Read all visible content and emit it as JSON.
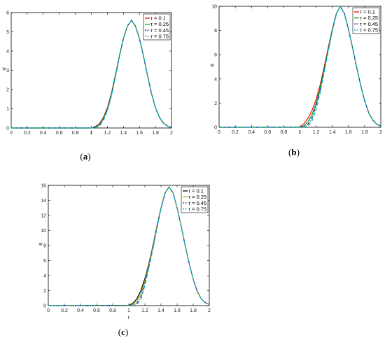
{
  "chart_data": [
    {
      "type": "line",
      "caption": "a",
      "xlabel": "r",
      "ylabel": "w",
      "xlim": [
        0,
        2
      ],
      "ylim": [
        0,
        6
      ],
      "xticks": [
        "0",
        "0.2",
        "0.4",
        "0.6",
        "0.8",
        "1",
        "1.2",
        "1.4",
        "1.6",
        "1.8",
        "2"
      ],
      "yticks": [
        "0",
        "1",
        "2",
        "3",
        "4",
        "5",
        "6"
      ],
      "legend_position": "top-right",
      "x": [
        0,
        1.0,
        1.05,
        1.1,
        1.15,
        1.2,
        1.25,
        1.3,
        1.35,
        1.4,
        1.45,
        1.5,
        1.55,
        1.6,
        1.65,
        1.7,
        1.75,
        1.8,
        1.85,
        1.9,
        1.95,
        2.0
      ],
      "series": [
        {
          "name": "τ = 0.1",
          "color": "#ff0000",
          "style": "solid",
          "values": [
            0,
            0,
            0.08,
            0.22,
            0.55,
            1.05,
            1.8,
            2.75,
            3.75,
            4.65,
            5.3,
            5.6,
            5.3,
            4.65,
            3.75,
            2.75,
            1.8,
            1.05,
            0.55,
            0.25,
            0.1,
            0.03
          ]
        },
        {
          "name": "τ = 0.25",
          "color": "#00aa00",
          "style": "solid",
          "values": [
            0,
            0,
            0.05,
            0.18,
            0.5,
            1.0,
            1.75,
            2.72,
            3.74,
            4.65,
            5.3,
            5.6,
            5.3,
            4.65,
            3.75,
            2.75,
            1.8,
            1.05,
            0.55,
            0.25,
            0.1,
            0.03
          ]
        },
        {
          "name": "τ = 0.45",
          "color": "#3333aa",
          "style": "dashdot",
          "values": [
            0,
            0,
            0.03,
            0.14,
            0.44,
            0.95,
            1.7,
            2.68,
            3.72,
            4.64,
            5.3,
            5.6,
            5.3,
            4.65,
            3.75,
            2.75,
            1.8,
            1.05,
            0.55,
            0.25,
            0.1,
            0.03
          ]
        },
        {
          "name": "τ = 0.75",
          "color": "#00b4c8",
          "style": "dashed",
          "values": [
            0,
            0,
            0.02,
            0.1,
            0.38,
            0.9,
            1.65,
            2.65,
            3.7,
            4.63,
            5.3,
            5.6,
            5.3,
            4.65,
            3.75,
            2.75,
            1.8,
            1.05,
            0.55,
            0.25,
            0.1,
            0.03
          ]
        }
      ]
    },
    {
      "type": "line",
      "caption": "b",
      "xlabel": "r",
      "ylabel": "w",
      "xlim": [
        0,
        2
      ],
      "ylim": [
        0,
        10
      ],
      "xticks": [
        "0",
        "0.2",
        "0.4",
        "0.6",
        "0.8",
        "1",
        "1.2",
        "1.4",
        "1.6",
        "1.8",
        "2"
      ],
      "yticks": [
        "0",
        "2",
        "4",
        "6",
        "8",
        "10"
      ],
      "legend_position": "top-right",
      "x": [
        0,
        1.0,
        1.05,
        1.1,
        1.15,
        1.2,
        1.25,
        1.3,
        1.35,
        1.4,
        1.45,
        1.5,
        1.55,
        1.6,
        1.65,
        1.7,
        1.75,
        1.8,
        1.85,
        1.9,
        1.95,
        2.0
      ],
      "series": [
        {
          "name": "τ = 0.1",
          "color": "#ff0000",
          "style": "solid",
          "values": [
            0,
            0.02,
            0.3,
            0.75,
            1.4,
            2.3,
            3.5,
            5.0,
            6.6,
            8.1,
            9.4,
            10.0,
            9.4,
            8.1,
            6.6,
            5.0,
            3.5,
            2.2,
            1.2,
            0.6,
            0.25,
            0.1
          ]
        },
        {
          "name": "τ = 0.25",
          "color": "#00aa00",
          "style": "solid",
          "values": [
            0,
            0,
            0.12,
            0.45,
            1.05,
            2.0,
            3.25,
            4.85,
            6.5,
            8.05,
            9.4,
            10.0,
            9.4,
            8.1,
            6.6,
            5.0,
            3.5,
            2.2,
            1.2,
            0.6,
            0.25,
            0.1
          ]
        },
        {
          "name": "τ = 0.45",
          "color": "#3333aa",
          "style": "dashdot",
          "values": [
            0,
            0,
            0.05,
            0.25,
            0.8,
            1.75,
            3.05,
            4.7,
            6.4,
            8.0,
            9.38,
            10.0,
            9.4,
            8.1,
            6.6,
            5.0,
            3.5,
            2.2,
            1.2,
            0.6,
            0.25,
            0.1
          ]
        },
        {
          "name": "τ = 0.75",
          "color": "#00b4c8",
          "style": "dashed",
          "values": [
            0,
            0,
            0.02,
            0.1,
            0.55,
            1.5,
            2.85,
            4.55,
            6.3,
            7.95,
            9.35,
            10.0,
            9.4,
            8.1,
            6.6,
            5.0,
            3.5,
            2.2,
            1.2,
            0.6,
            0.25,
            0.1
          ]
        }
      ]
    },
    {
      "type": "line",
      "caption": "c",
      "xlabel": "r",
      "ylabel": "w",
      "xlim": [
        0,
        2
      ],
      "ylim": [
        0,
        16
      ],
      "xticks": [
        "0",
        "0.2",
        "0.4",
        "0.6",
        "0.8",
        "1",
        "1.2",
        "1.4",
        "1.6",
        "1.8",
        "2"
      ],
      "yticks": [
        "0",
        "2",
        "4",
        "6",
        "8",
        "10",
        "12",
        "14",
        "16"
      ],
      "legend_position": "top-right",
      "x": [
        0,
        1.0,
        1.05,
        1.1,
        1.15,
        1.2,
        1.25,
        1.3,
        1.35,
        1.4,
        1.45,
        1.5,
        1.55,
        1.6,
        1.65,
        1.7,
        1.75,
        1.8,
        1.85,
        1.9,
        1.95,
        2.0
      ],
      "series": [
        {
          "name": "τ = 0.1",
          "color": "#000000",
          "style": "solid",
          "values": [
            0,
            0.05,
            0.3,
            0.9,
            2.0,
            3.6,
            5.6,
            8.0,
            10.6,
            13.0,
            15.0,
            15.8,
            15.0,
            13.0,
            10.6,
            8.0,
            5.6,
            3.5,
            1.9,
            0.9,
            0.4,
            0.15
          ]
        },
        {
          "name": "τ = 0.25",
          "color": "#b5b500",
          "style": "solid",
          "values": [
            0,
            0,
            0.15,
            0.6,
            1.6,
            3.3,
            5.4,
            7.85,
            10.5,
            12.95,
            15.0,
            15.8,
            15.0,
            13.0,
            10.6,
            8.0,
            5.6,
            3.5,
            1.9,
            0.9,
            0.4,
            0.15
          ]
        },
        {
          "name": "τ = 0.45",
          "color": "#3333aa",
          "style": "dashdot",
          "values": [
            0,
            0,
            0.05,
            0.3,
            1.2,
            3.0,
            5.2,
            7.7,
            10.4,
            12.9,
            14.95,
            15.8,
            15.0,
            13.0,
            10.6,
            8.0,
            5.6,
            3.5,
            1.9,
            0.9,
            0.4,
            0.15
          ]
        },
        {
          "name": "τ = 0.75",
          "color": "#00b4c8",
          "style": "dashed",
          "values": [
            0,
            0,
            0.02,
            0.1,
            0.8,
            2.7,
            5.0,
            7.55,
            10.3,
            12.85,
            14.9,
            15.8,
            15.0,
            13.0,
            10.6,
            8.0,
            5.6,
            3.5,
            1.9,
            0.9,
            0.4,
            0.15
          ]
        }
      ]
    }
  ]
}
